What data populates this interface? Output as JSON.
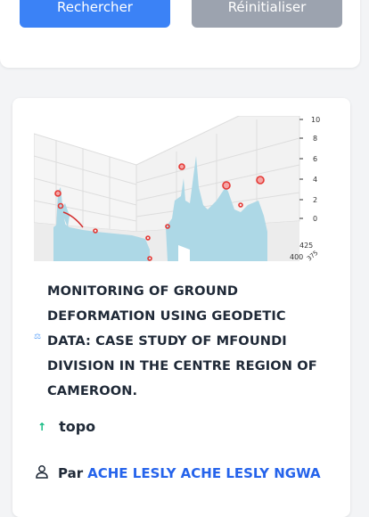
{
  "search": {
    "submit_label": "Rechercher",
    "reset_label": "Réinitialiser"
  },
  "result": {
    "axis_ticks_right": [
      "10",
      "8",
      "6",
      "4",
      "2",
      "0"
    ],
    "axis_ticks_bottom": [
      "425",
      "400",
      "375"
    ],
    "title": "MONITORING OF GROUND DEFORMATION USING GEODETIC DATA: CASE STUDY OF MFOUNDI DIVISION IN THE CENTRE REGION OF CAMEROON.",
    "topic": "topo",
    "author_prefix": "Par",
    "author": "ACHE LESLY ACHE LESLY NGWA"
  },
  "colors": {
    "primary": "#3b82f6",
    "secondary": "#9ca3af",
    "link": "#2563eb",
    "topic_arrow": "#10b981",
    "surface": "#add8e6",
    "points": "#e53935"
  }
}
